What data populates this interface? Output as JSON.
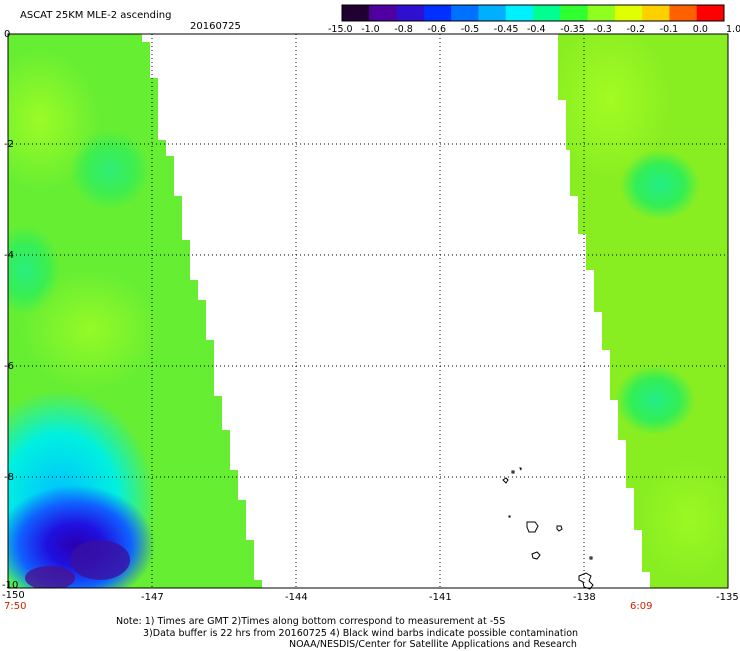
{
  "header": {
    "title": "ASCAT 25KM MLE-2 ascending",
    "date": "20160725"
  },
  "colorbar": {
    "labels": [
      "-15.0",
      "-1.0",
      "-0.8",
      "-0.6",
      "-0.5",
      "-0.45",
      "-0.4",
      "-0.35",
      "-0.3",
      "-0.2",
      "-0.1",
      "0.0",
      "1.0"
    ],
    "colors": [
      "#200030",
      "#5000a0",
      "#3010d0",
      "#0030ff",
      "#0070ff",
      "#00b0ff",
      "#00f0ff",
      "#00ff90",
      "#30ff30",
      "#90ff20",
      "#e0ff00",
      "#ffd000",
      "#ff6000",
      "#ff0000"
    ]
  },
  "axes": {
    "x_ticks": [
      "-150",
      "-147",
      "-144",
      "-141",
      "-138",
      "-135"
    ],
    "y_ticks": [
      "0",
      "-2",
      "-4",
      "-6",
      "-8",
      "-10"
    ]
  },
  "times": {
    "left": "7:50",
    "right": "6:09"
  },
  "notes": [
    "Note: 1) Times are GMT 2)Times along bottom correspond to measurement at -5S",
    "3)Data buffer is 22 hrs from 20160725 4) Black wind barbs indicate possible contamination",
    "NOAA/NESDIS/Center for Satellite Applications and Research"
  ],
  "colors": {
    "background_field": "#66ee33",
    "gridline": "#000000",
    "time_label": "#cc2200"
  }
}
